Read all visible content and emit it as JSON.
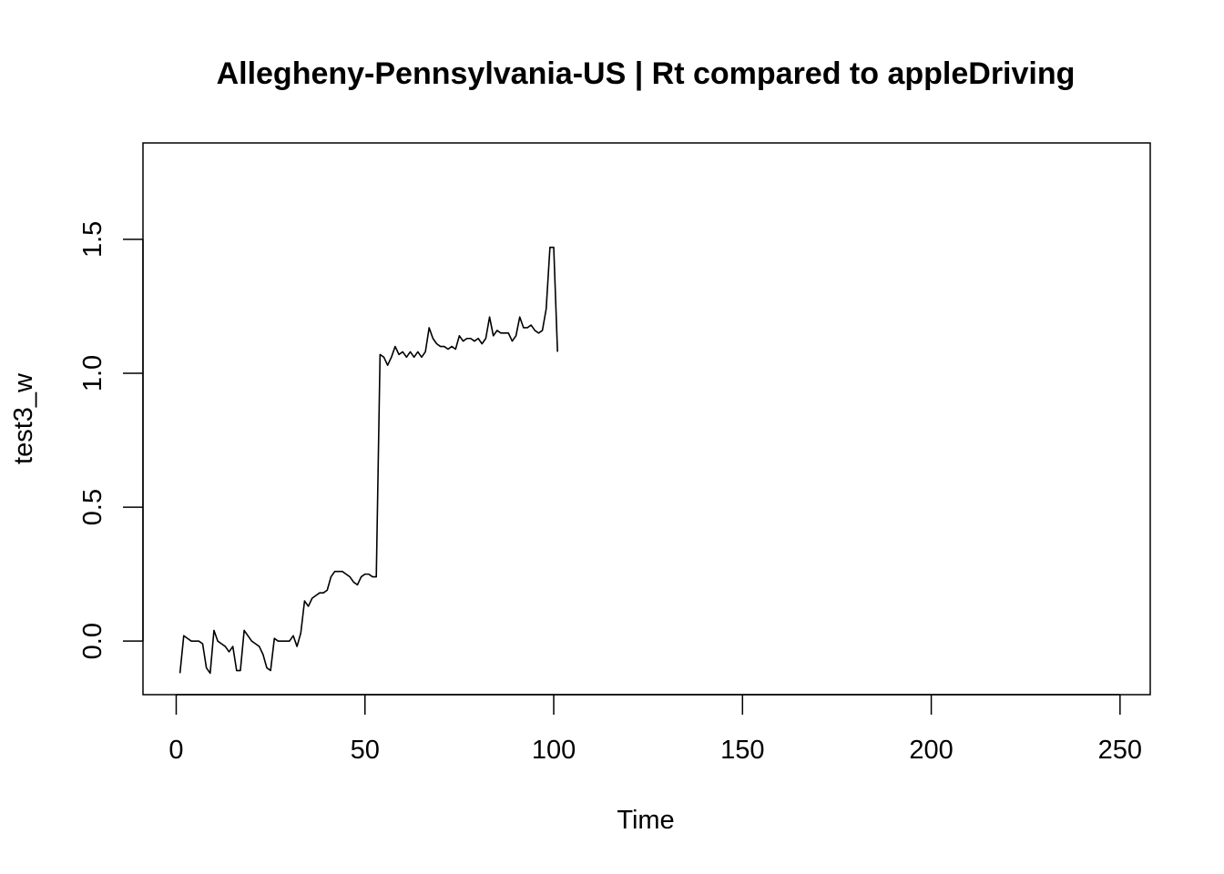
{
  "chart_data": {
    "type": "line",
    "title": "Allegheny-Pennsylvania-US | Rt compared to appleDriving",
    "xlabel": "Time",
    "ylabel": "test3_w",
    "xlim": [
      -8.8,
      258
    ],
    "ylim": [
      -0.2,
      1.86
    ],
    "xticks": [
      0,
      50,
      100,
      150,
      200,
      250
    ],
    "yticks": [
      0.0,
      0.5,
      1.0,
      1.5
    ],
    "xtick_labels": [
      "0",
      "50",
      "100",
      "150",
      "200",
      "250"
    ],
    "ytick_labels": [
      "0.0",
      "0.5",
      "1.0",
      "1.5"
    ],
    "grid": false,
    "legend": "none",
    "line_color": "#000000",
    "series": [
      {
        "x_start": 1,
        "x_step": 1,
        "values": [
          -0.12,
          0.02,
          0.01,
          0.0,
          0.0,
          0.0,
          -0.01,
          -0.1,
          -0.12,
          0.04,
          0.0,
          -0.01,
          -0.02,
          -0.04,
          -0.02,
          -0.11,
          -0.11,
          0.04,
          0.02,
          0.0,
          -0.01,
          -0.02,
          -0.05,
          -0.1,
          -0.11,
          0.01,
          0.0,
          0.0,
          0.0,
          0.0,
          0.02,
          -0.02,
          0.03,
          0.15,
          0.13,
          0.16,
          0.17,
          0.18,
          0.18,
          0.19,
          0.24,
          0.26,
          0.26,
          0.26,
          0.25,
          0.24,
          0.22,
          0.21,
          0.24,
          0.25,
          0.25,
          0.24,
          0.24,
          1.07,
          1.06,
          1.03,
          1.06,
          1.1,
          1.07,
          1.08,
          1.06,
          1.08,
          1.06,
          1.08,
          1.06,
          1.08,
          1.17,
          1.13,
          1.11,
          1.1,
          1.1,
          1.09,
          1.1,
          1.09,
          1.14,
          1.12,
          1.13,
          1.13,
          1.12,
          1.13,
          1.11,
          1.13,
          1.21,
          1.14,
          1.16,
          1.15,
          1.15,
          1.15,
          1.12,
          1.14,
          1.21,
          1.17,
          1.17,
          1.18,
          1.16,
          1.15,
          1.16,
          1.24,
          1.47,
          1.47,
          1.08
        ]
      }
    ]
  }
}
